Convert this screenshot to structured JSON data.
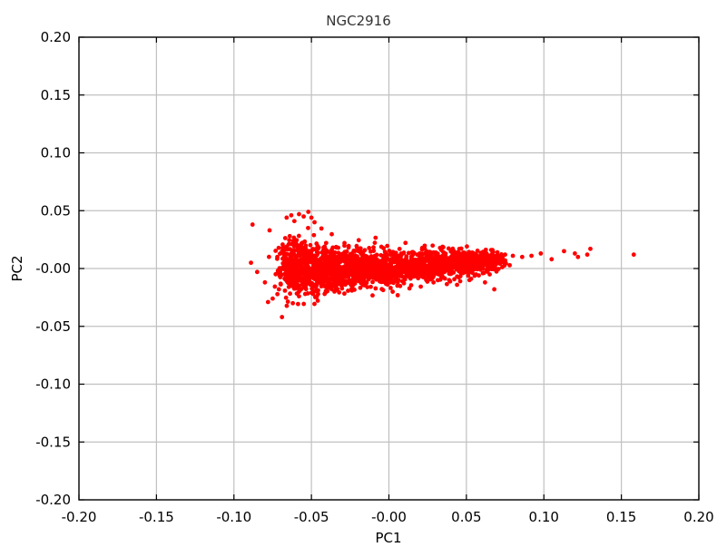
{
  "chart_data": {
    "type": "scatter",
    "title": "NGC2916",
    "xlabel": "PC1",
    "ylabel": "PC2",
    "xlim": [
      -0.2,
      0.2
    ],
    "ylim": [
      -0.2,
      0.2
    ],
    "grid": true,
    "xticks": [
      -0.2,
      -0.15,
      -0.1,
      -0.05,
      0.0,
      0.05,
      0.1,
      0.15,
      0.2
    ],
    "yticks": [
      -0.2,
      -0.15,
      -0.1,
      -0.05,
      0.0,
      0.05,
      0.1,
      0.15,
      0.2
    ],
    "xtick_labels": [
      "-0.20",
      "-0.15",
      "-0.10",
      "-0.05",
      "-0.00",
      "0.05",
      "0.10",
      "0.15",
      "0.20"
    ],
    "ytick_labels": [
      "-0.20",
      "-0.15",
      "-0.10",
      "-0.05",
      "-0.00",
      "0.05",
      "0.10",
      "0.15",
      "0.20"
    ],
    "marker_color": "#ff0000",
    "series": [
      {
        "points": [
          [
            -0.088,
            0.038
          ],
          [
            -0.089,
            0.005
          ],
          [
            -0.085,
            -0.003
          ],
          [
            -0.08,
            -0.012
          ],
          [
            -0.078,
            -0.029
          ],
          [
            -0.075,
            -0.026
          ],
          [
            -0.069,
            -0.042
          ],
          [
            -0.077,
            0.033
          ],
          [
            -0.072,
            0.01
          ],
          [
            -0.071,
            -0.018
          ],
          [
            -0.066,
            0.044
          ],
          [
            -0.063,
            0.046
          ],
          [
            -0.061,
            0.041
          ],
          [
            -0.058,
            0.047
          ],
          [
            -0.055,
            0.045
          ],
          [
            -0.052,
            0.049
          ],
          [
            -0.05,
            0.044
          ],
          [
            -0.048,
            0.04
          ],
          [
            -0.064,
            0.028
          ],
          [
            -0.06,
            0.022
          ],
          [
            -0.062,
            -0.03
          ],
          [
            -0.058,
            -0.024
          ],
          [
            -0.054,
            -0.022
          ],
          [
            -0.05,
            -0.021
          ],
          [
            -0.046,
            -0.02
          ],
          [
            0.113,
            0.015
          ],
          [
            0.12,
            0.013
          ],
          [
            0.122,
            0.01
          ],
          [
            0.13,
            0.017
          ],
          [
            0.128,
            0.012
          ],
          [
            0.158,
            0.012
          ],
          [
            0.105,
            0.008
          ],
          [
            0.098,
            0.013
          ],
          [
            0.092,
            0.011
          ],
          [
            0.086,
            0.01
          ],
          [
            0.08,
            0.011
          ],
          [
            0.075,
            0.012
          ],
          [
            0.07,
            0.014
          ],
          [
            0.066,
            0.016
          ],
          [
            0.063,
            0.013
          ],
          [
            0.068,
            -0.018
          ],
          [
            0.062,
            -0.012
          ],
          [
            0.058,
            -0.006
          ],
          [
            0.052,
            -0.01
          ],
          [
            0.046,
            -0.011
          ]
        ],
        "cluster": {
          "seed": 2916,
          "count": 2400,
          "x_range": [
            -0.066,
            0.07
          ],
          "y_center": 0.0,
          "y_slope": 0.09,
          "y_spread_left": 0.022,
          "y_spread_right": 0.008
        }
      }
    ]
  }
}
